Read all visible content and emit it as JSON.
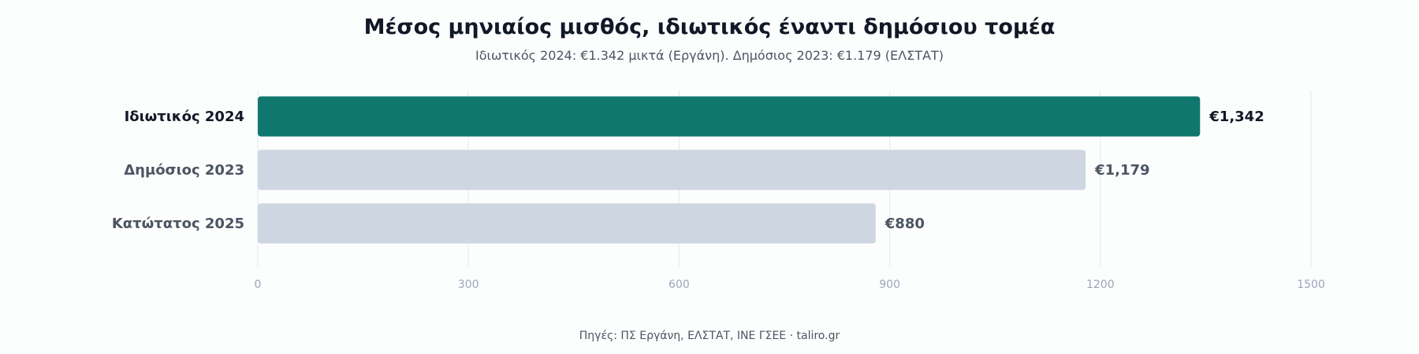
{
  "chart_data": {
    "type": "bar",
    "orientation": "horizontal",
    "title": "Μέσος μηνιαίος μισθός, ιδιωτικός έναντι δημόσιου τομέα",
    "subtitle": "Ιδιωτικός 2024: €1.342 μικτά (Εργάνη). Δημόσιος 2023: €1.179 (ΕΛΣΤΑΤ)",
    "categories": [
      "Ιδιωτικός 2024",
      "Δημόσιος 2023",
      "Κατώτατος 2025"
    ],
    "values": [
      1342,
      1179,
      880
    ],
    "value_labels": [
      "€1,342",
      "€1,179",
      "€880"
    ],
    "xlim": [
      0,
      1500
    ],
    "xticks": [
      "0",
      "300",
      "600",
      "900",
      "1200",
      "1500"
    ],
    "grid": true,
    "source": "Πηγές: ΠΣ Εργάνη, ΕΛΣΤΑΤ, ΙΝΕ ΓΣΕΕ · taliro.gr"
  },
  "colors": {
    "highlight_bar": "#10776e",
    "other_bar": "#cdd6e1",
    "highlight_label": "#111827",
    "other_label": "#4b5563"
  }
}
